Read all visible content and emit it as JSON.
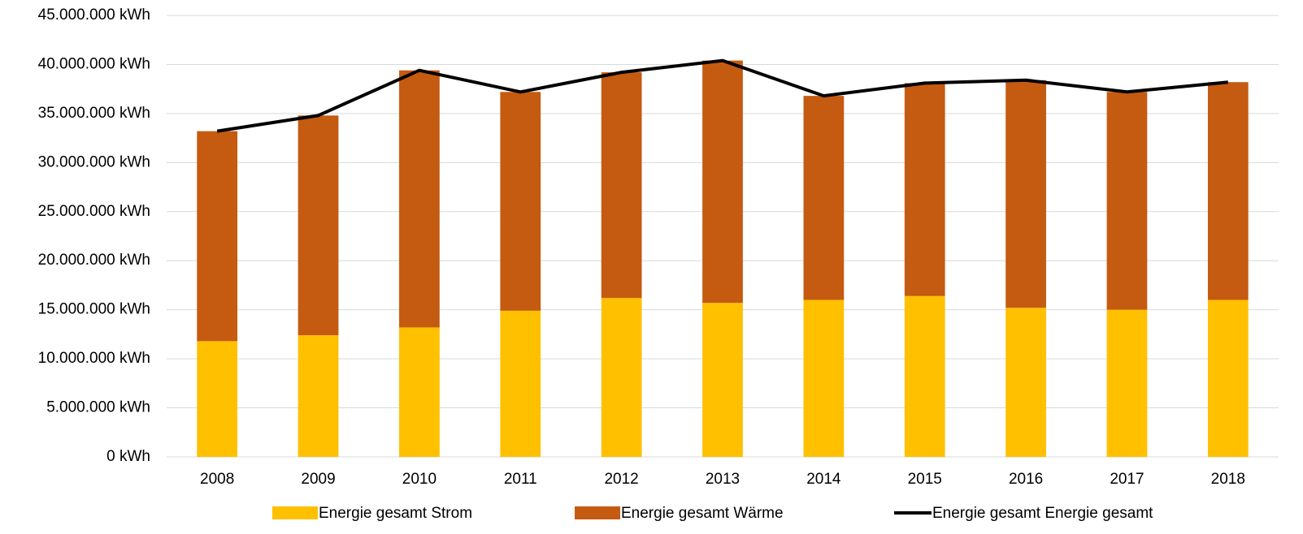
{
  "chart_data": {
    "type": "bar",
    "stacked": true,
    "categories": [
      "2008",
      "2009",
      "2010",
      "2011",
      "2012",
      "2013",
      "2014",
      "2015",
      "2016",
      "2017",
      "2018"
    ],
    "series": [
      {
        "name": "Energie gesamt Strom",
        "type": "bar",
        "color": "#ffc000",
        "values": [
          11800000,
          12400000,
          13200000,
          14900000,
          16200000,
          15700000,
          16000000,
          16400000,
          15200000,
          15000000,
          16000000
        ]
      },
      {
        "name": "Energie gesamt Wärme",
        "type": "bar",
        "color": "#c55a11",
        "values": [
          21400000,
          22400000,
          26200000,
          22300000,
          23000000,
          24700000,
          20800000,
          21700000,
          23200000,
          22200000,
          22200000
        ]
      },
      {
        "name": "Energie gesamt Energie gesamt",
        "type": "line",
        "color": "#000000",
        "values": [
          33200000,
          34800000,
          39400000,
          37200000,
          39200000,
          40400000,
          36800000,
          38100000,
          38400000,
          37200000,
          38200000
        ]
      }
    ],
    "ylim": [
      0,
      45000000
    ],
    "yticks": [
      {
        "value": 0,
        "label": "0 kWh"
      },
      {
        "value": 5000000,
        "label": "5.000.000 kWh"
      },
      {
        "value": 10000000,
        "label": "10.000.000 kWh"
      },
      {
        "value": 15000000,
        "label": "15.000.000 kWh"
      },
      {
        "value": 20000000,
        "label": "20.000.000 kWh"
      },
      {
        "value": 25000000,
        "label": "25.000.000 kWh"
      },
      {
        "value": 30000000,
        "label": "30.000.000 kWh"
      },
      {
        "value": 35000000,
        "label": "35.000.000 kWh"
      },
      {
        "value": 40000000,
        "label": "40.000.000 kWh"
      },
      {
        "value": 45000000,
        "label": "45.000.000 kWh"
      }
    ],
    "grid": true,
    "legend": "bottom"
  }
}
